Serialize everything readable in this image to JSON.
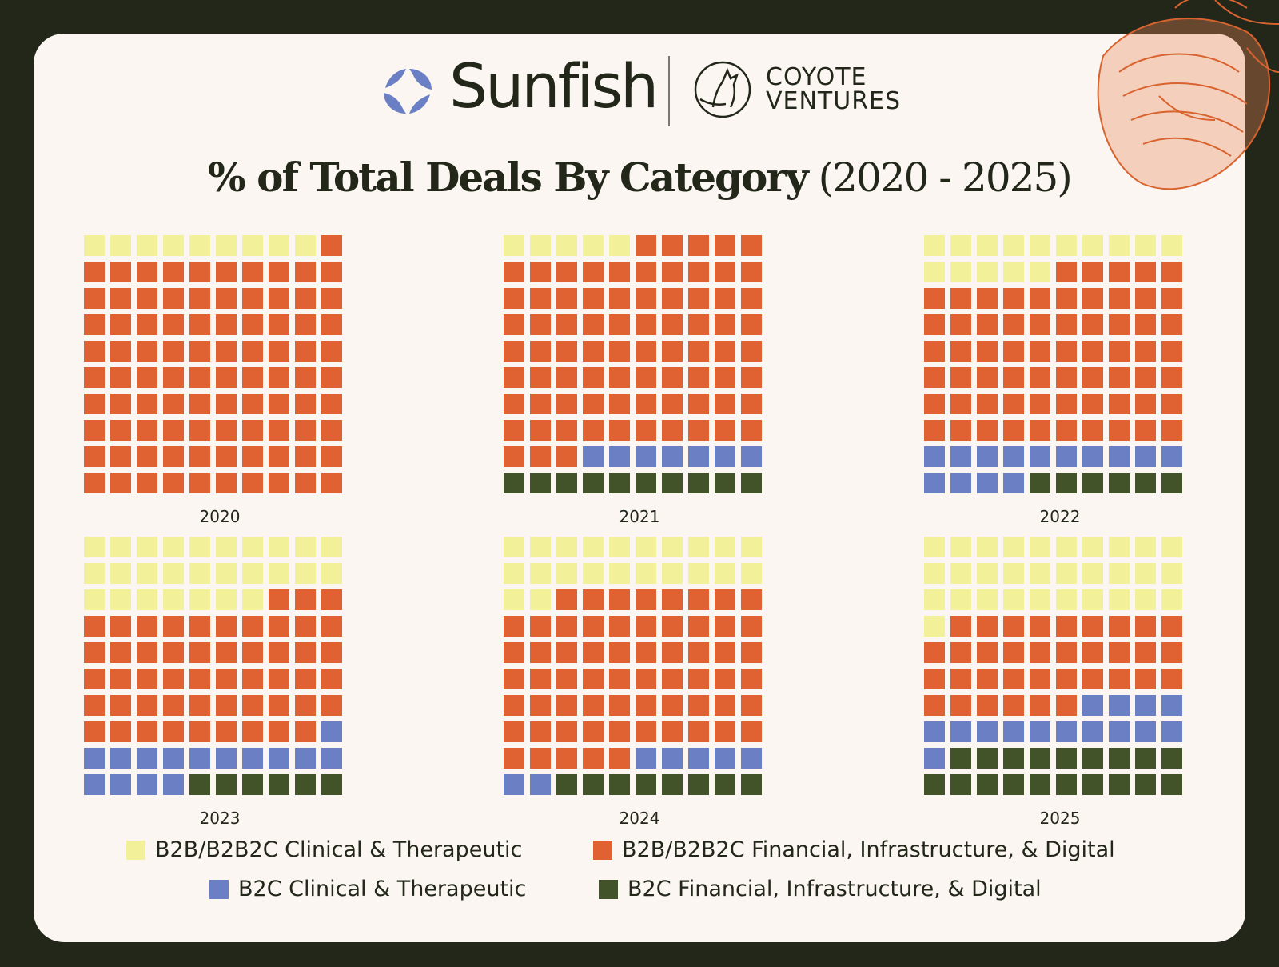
{
  "brand": {
    "sunfish": "Sunfish",
    "coyote_line1": "COYOTE",
    "coyote_line2": "VENTURES",
    "colors": {
      "background": "#22271a",
      "card": "#fbf6f1",
      "sunfish_mark": "#6b7fc4",
      "accent_deco": "#d9632e"
    }
  },
  "title": {
    "bold": "% of Total Deals By Category",
    "regular": "(2020 - 2025)"
  },
  "chart_data": {
    "type": "waffle",
    "unit": "% of total deals (1 square = 1%)",
    "categories": [
      {
        "key": "b2b_clin",
        "name": "B2B/B2B2C Clinical & Therapeutic",
        "color": "#f2f099"
      },
      {
        "key": "b2b_fin",
        "name": "B2B/B2B2C Financial, Infrastructure, & Digital",
        "color": "#e06232"
      },
      {
        "key": "b2c_clin",
        "name": "B2C Clinical & Therapeutic",
        "color": "#6b7fc4"
      },
      {
        "key": "b2c_fin",
        "name": "B2C Financial, Infrastructure, & Digital",
        "color": "#42532a"
      }
    ],
    "panels": [
      {
        "year": "2020",
        "values": [
          9,
          91,
          0,
          0
        ]
      },
      {
        "year": "2021",
        "values": [
          5,
          78,
          7,
          10
        ]
      },
      {
        "year": "2022",
        "values": [
          15,
          65,
          14,
          6
        ]
      },
      {
        "year": "2023",
        "values": [
          27,
          52,
          15,
          6
        ]
      },
      {
        "year": "2024",
        "values": [
          22,
          63,
          7,
          8
        ]
      },
      {
        "year": "2025",
        "values": [
          31,
          35,
          15,
          19
        ]
      }
    ]
  }
}
